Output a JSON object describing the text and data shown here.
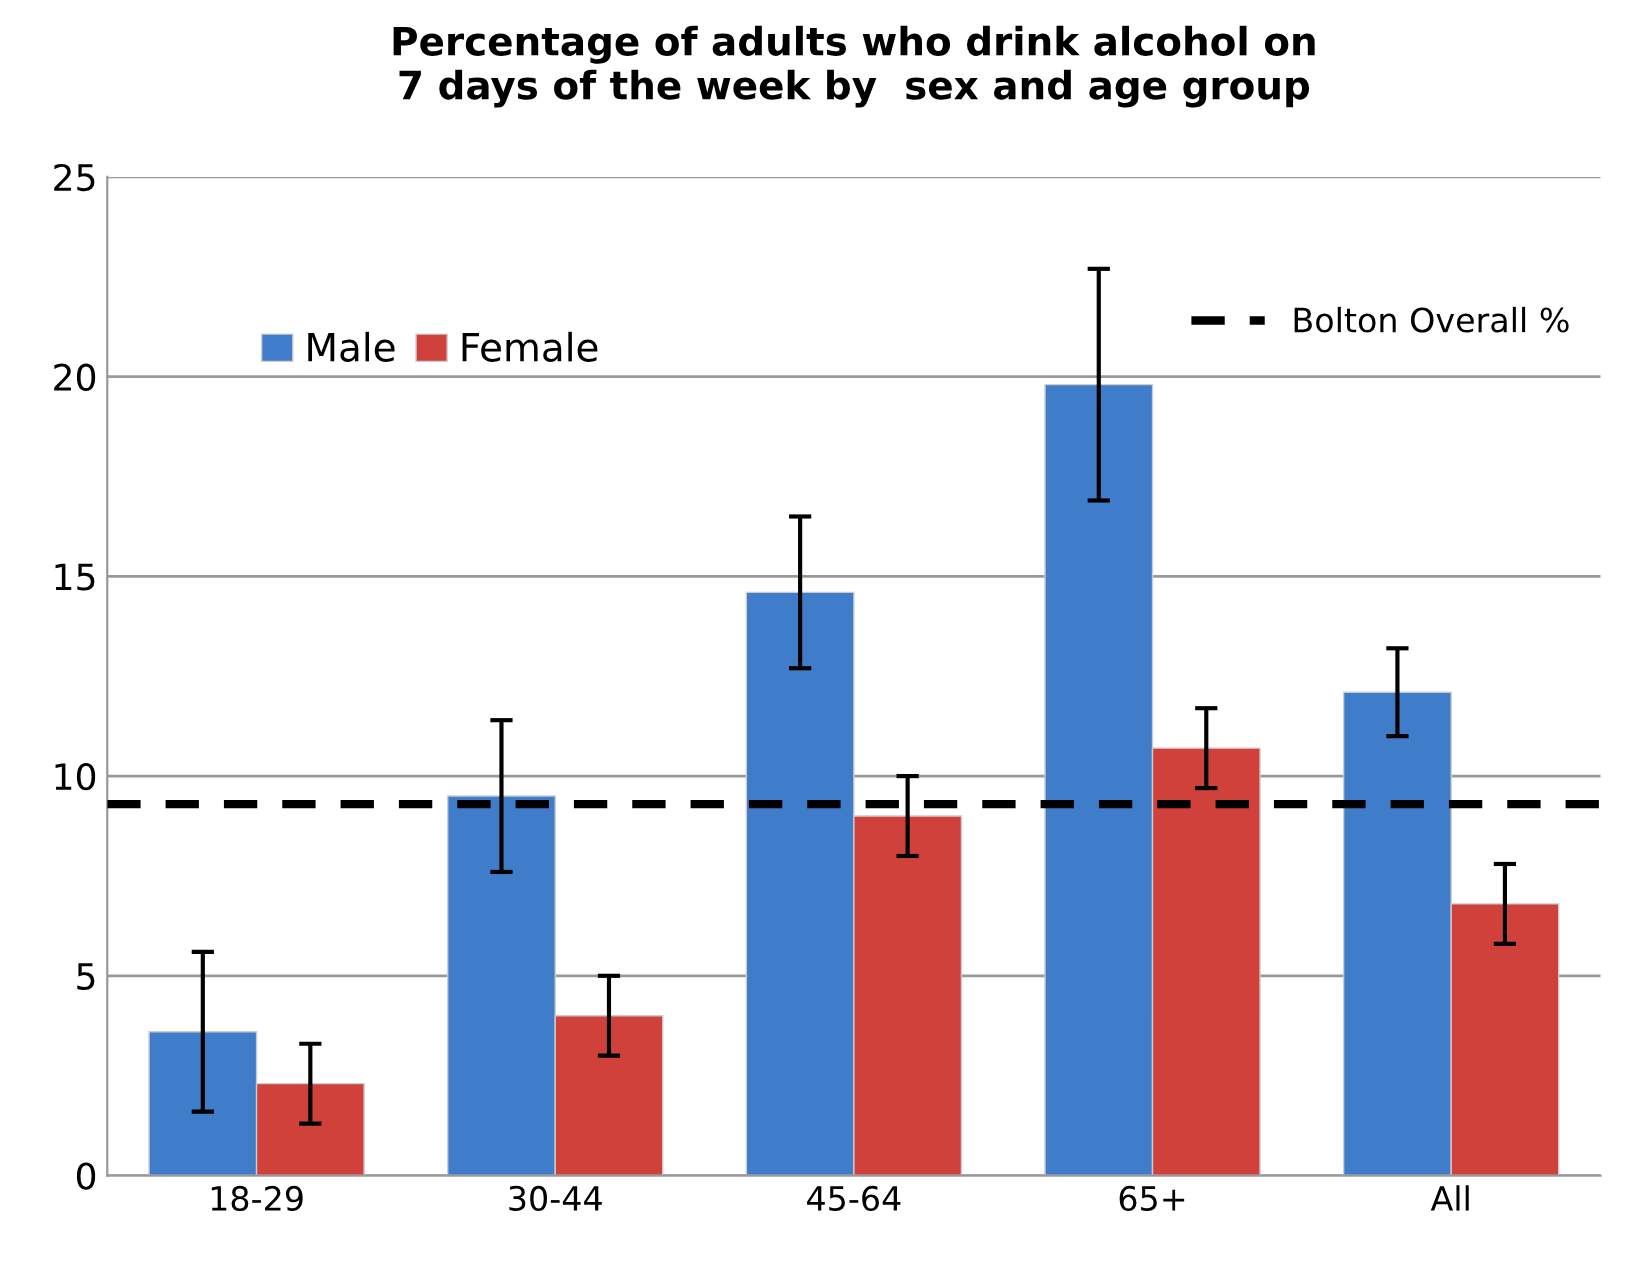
{
  "chart_data": {
    "type": "bar",
    "title": "Percentage of adults who drink alcohol on\n7 days of the week by  sex and age group",
    "categories": [
      "18-29",
      "30-44",
      "45-64",
      "65+",
      "All"
    ],
    "series": [
      {
        "name": "Male",
        "color": "#3f7cc9",
        "values": [
          3.6,
          9.5,
          14.6,
          19.8,
          12.1
        ],
        "errors": [
          [
            1.6,
            5.6
          ],
          [
            7.6,
            11.4
          ],
          [
            12.7,
            16.5
          ],
          [
            16.9,
            22.7
          ],
          [
            11.0,
            13.2
          ]
        ]
      },
      {
        "name": "Female",
        "color": "#d0413c",
        "values": [
          2.3,
          4.0,
          9.0,
          10.7,
          6.8
        ],
        "errors": [
          [
            1.3,
            3.3
          ],
          [
            3.0,
            5.0
          ],
          [
            8.0,
            10.0
          ],
          [
            9.7,
            11.7
          ],
          [
            5.8,
            7.8
          ]
        ]
      }
    ],
    "ref_lines": [
      {
        "axis": "y",
        "value": 9.3,
        "label": "Bolton Overall %",
        "color": "#000000",
        "line_style": "dashed"
      }
    ],
    "ylim": [
      0,
      25
    ],
    "yticks": [
      0,
      5,
      10,
      15,
      20,
      25
    ],
    "grid": "y",
    "legend": "top left"
  }
}
